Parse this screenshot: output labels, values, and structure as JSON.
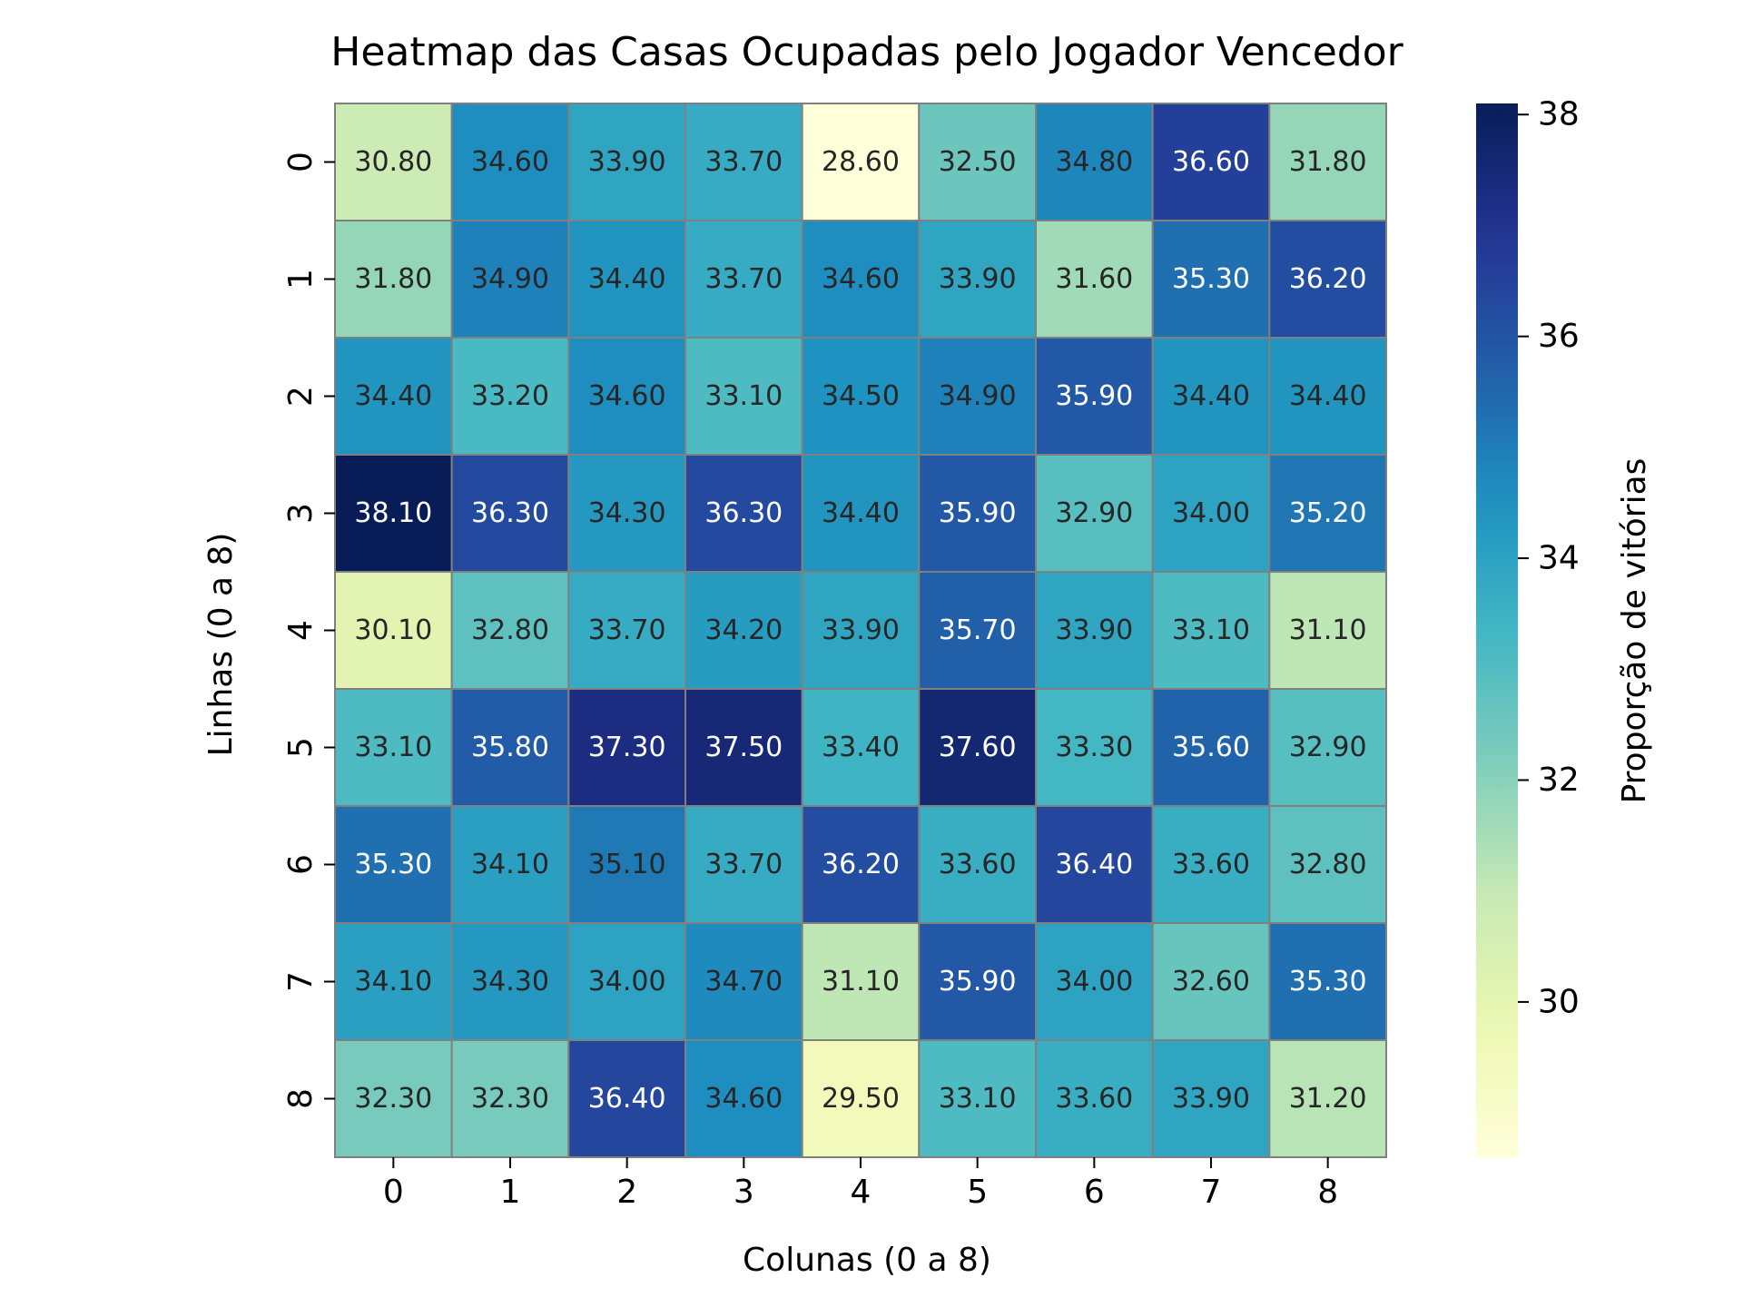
{
  "chart_data": {
    "type": "heatmap",
    "title": "Heatmap das Casas Ocupadas pelo Jogador Vencedor",
    "xlabel": "Colunas (0 a 8)",
    "ylabel": "Linhas (0 a 8)",
    "x_categories": [
      "0",
      "1",
      "2",
      "3",
      "4",
      "5",
      "6",
      "7",
      "8"
    ],
    "y_categories": [
      "0",
      "1",
      "2",
      "3",
      "4",
      "5",
      "6",
      "7",
      "8"
    ],
    "values": [
      [
        30.8,
        34.6,
        33.9,
        33.7,
        28.6,
        32.5,
        34.8,
        36.6,
        31.8
      ],
      [
        31.8,
        34.9,
        34.4,
        33.7,
        34.6,
        33.9,
        31.6,
        35.3,
        36.2
      ],
      [
        34.4,
        33.2,
        34.6,
        33.1,
        34.5,
        34.9,
        35.9,
        34.4,
        34.4
      ],
      [
        38.1,
        36.3,
        34.3,
        36.3,
        34.4,
        35.9,
        32.9,
        34.0,
        35.2
      ],
      [
        30.1,
        32.8,
        33.7,
        34.2,
        33.9,
        35.7,
        33.9,
        33.1,
        31.1
      ],
      [
        33.1,
        35.8,
        37.3,
        37.5,
        33.4,
        37.6,
        33.3,
        35.6,
        32.9
      ],
      [
        35.3,
        34.1,
        35.1,
        33.7,
        36.2,
        33.6,
        36.4,
        33.6,
        32.8
      ],
      [
        34.1,
        34.3,
        34.0,
        34.7,
        31.1,
        35.9,
        34.0,
        32.6,
        35.3
      ],
      [
        32.3,
        32.3,
        36.4,
        34.6,
        29.5,
        33.1,
        33.6,
        33.9,
        31.2
      ]
    ],
    "value_format": "0.00",
    "colormap": "YlGnBu",
    "vmin": 28.6,
    "vmax": 38.1,
    "colorbar": {
      "label": "Proporção de vitórias",
      "ticks": [
        30,
        32,
        34,
        36,
        38
      ]
    },
    "cell_border_color": "#808080",
    "grid": false
  }
}
